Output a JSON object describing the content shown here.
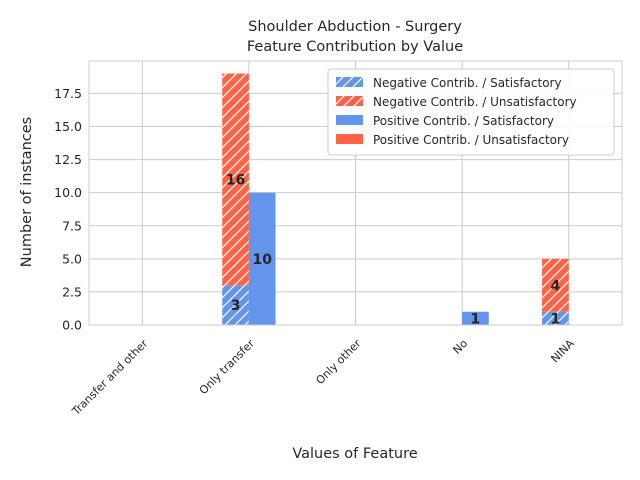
{
  "chart_data": {
    "type": "bar",
    "title_lines": [
      "Shoulder Abduction - Surgery",
      "Feature Contribution by Value"
    ],
    "xlabel": "Values of Feature",
    "ylabel": "Number of instances",
    "categories": [
      "Transfer and other",
      "Only transfer",
      "Only other",
      "No",
      "NINA"
    ],
    "ylim": [
      0,
      19.95
    ],
    "yticks": [
      "0.0",
      "2.5",
      "5.0",
      "7.5",
      "10.0",
      "12.5",
      "15.0",
      "17.5"
    ],
    "grid": true,
    "legend_position": "top-right",
    "series": [
      {
        "name": "Negative Contrib. / Satisfactory",
        "group": "negative",
        "color": "#6495ED",
        "hatch": true,
        "values": [
          0,
          3,
          0,
          0,
          1
        ],
        "labels": [
          "",
          "3",
          "",
          "",
          "1"
        ]
      },
      {
        "name": "Negative Contrib. / Unsatisfactory",
        "group": "negative",
        "color": "#FF6347",
        "hatch": true,
        "values": [
          0,
          16,
          0,
          0,
          4
        ],
        "labels": [
          "",
          "16",
          "",
          "",
          "4"
        ]
      },
      {
        "name": "Positive Contrib. / Satisfactory",
        "group": "positive",
        "color": "#6495ED",
        "hatch": false,
        "values": [
          0,
          10,
          0,
          1,
          0
        ],
        "labels": [
          "",
          "10",
          "",
          "1",
          ""
        ]
      },
      {
        "name": "Positive Contrib. / Unsatisfactory",
        "group": "positive",
        "color": "#FF6347",
        "hatch": false,
        "values": [
          0,
          0,
          0,
          0,
          0
        ],
        "labels": [
          "",
          "",
          "",
          "",
          ""
        ]
      }
    ]
  }
}
